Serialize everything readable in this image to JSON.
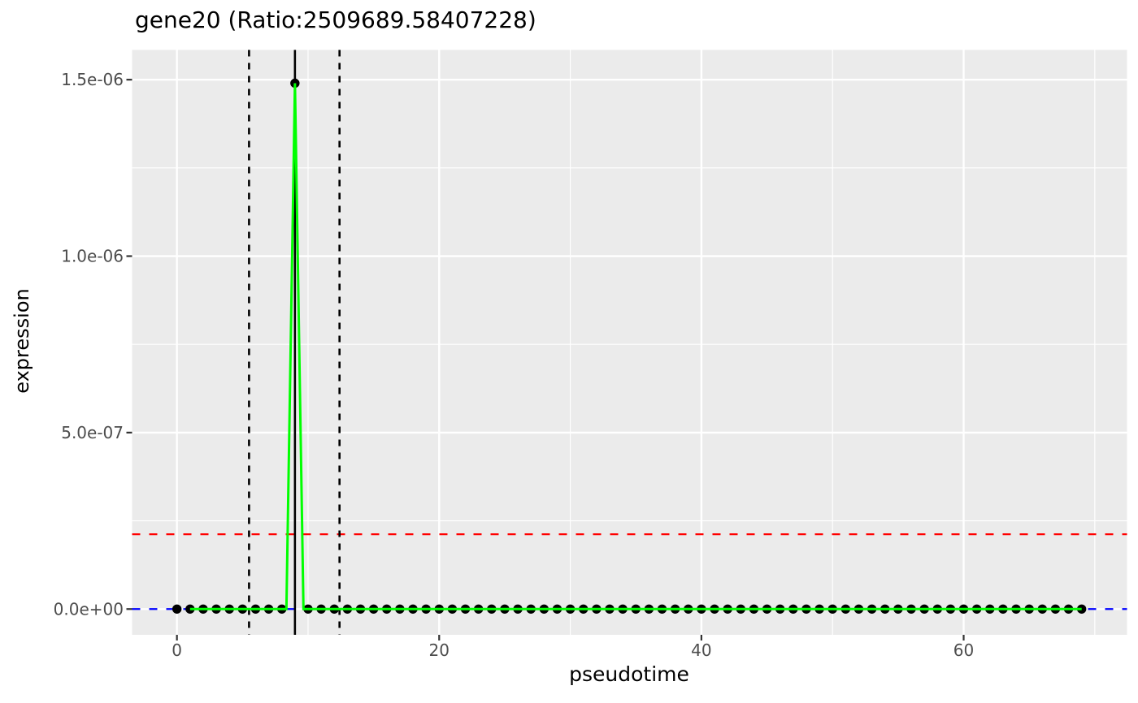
{
  "page": {
    "background": "#FFFFFF"
  },
  "chart_data": {
    "type": "line",
    "title": "gene20 (Ratio:2509689.58407228)",
    "xlabel": "pseudotime",
    "ylabel": "expression",
    "panel_bg": "#EBEBEB",
    "grid_color": "#FFFFFF",
    "tick_color": "#333333",
    "tick_label_color": "#4D4D4D",
    "x_domain": [
      -3.42,
      72.46
    ],
    "y_domain": [
      -7.3e-08,
      1.5843e-06
    ],
    "x_ticks": {
      "values": [
        0,
        20,
        40,
        60
      ],
      "labels": [
        "0",
        "20",
        "40",
        "60"
      ]
    },
    "x_minor": [
      10,
      30,
      50,
      70
    ],
    "y_ticks": {
      "values": [
        0,
        5e-07,
        1e-06,
        1.5e-06
      ],
      "labels": [
        "0.0e+00",
        "5.0e-07",
        "1.0e-06",
        "1.5e-06"
      ]
    },
    "y_minor": [
      2.5e-07,
      7.5e-07,
      1.25e-06
    ],
    "grid": true,
    "legend": "none",
    "series": [
      {
        "name": "expression-points",
        "kind": "scatter",
        "color": "#000000",
        "x": [
          0,
          1,
          2,
          3,
          4,
          5,
          6,
          7,
          8,
          9,
          10,
          11,
          12,
          13,
          14,
          15,
          16,
          17,
          18,
          19,
          20,
          21,
          22,
          23,
          24,
          25,
          26,
          27,
          28,
          29,
          30,
          31,
          32,
          33,
          34,
          35,
          36,
          37,
          38,
          39,
          40,
          41,
          42,
          43,
          44,
          45,
          46,
          47,
          48,
          49,
          50,
          51,
          52,
          53,
          54,
          55,
          56,
          57,
          58,
          59,
          60,
          61,
          62,
          63,
          64,
          65,
          66,
          67,
          68,
          69
        ],
        "y": [
          0,
          0,
          0,
          0,
          0,
          0,
          0,
          0,
          0,
          1.49e-06,
          0,
          0,
          0,
          0,
          0,
          0,
          0,
          0,
          0,
          0,
          0,
          0,
          0,
          0,
          0,
          0,
          0,
          0,
          0,
          0,
          0,
          0,
          0,
          0,
          0,
          0,
          0,
          0,
          0,
          0,
          0,
          0,
          0,
          0,
          0,
          0,
          0,
          0,
          0,
          0,
          0,
          0,
          0,
          0,
          0,
          0,
          0,
          0,
          0,
          0,
          0,
          0,
          0,
          0,
          0,
          0,
          0,
          0,
          0,
          0
        ]
      },
      {
        "name": "fitted-curve",
        "kind": "line",
        "color": "#00FF00",
        "vertices": [
          [
            1,
            0
          ],
          [
            8.35,
            0
          ],
          [
            9.0,
            1.49e-06
          ],
          [
            9.65,
            0
          ],
          [
            69,
            0
          ]
        ]
      }
    ],
    "reference_lines": {
      "horizontal": [
        {
          "y": 0,
          "color": "#0000FF",
          "style": "dashed"
        },
        {
          "y": 2.12e-07,
          "color": "#FF0000",
          "style": "dashed"
        }
      ],
      "vertical": [
        {
          "x": 5.5,
          "color": "#000000",
          "style": "dashed"
        },
        {
          "x": 9.0,
          "color": "#000000",
          "style": "solid"
        },
        {
          "x": 12.4,
          "color": "#000000",
          "style": "dashed"
        }
      ]
    }
  }
}
